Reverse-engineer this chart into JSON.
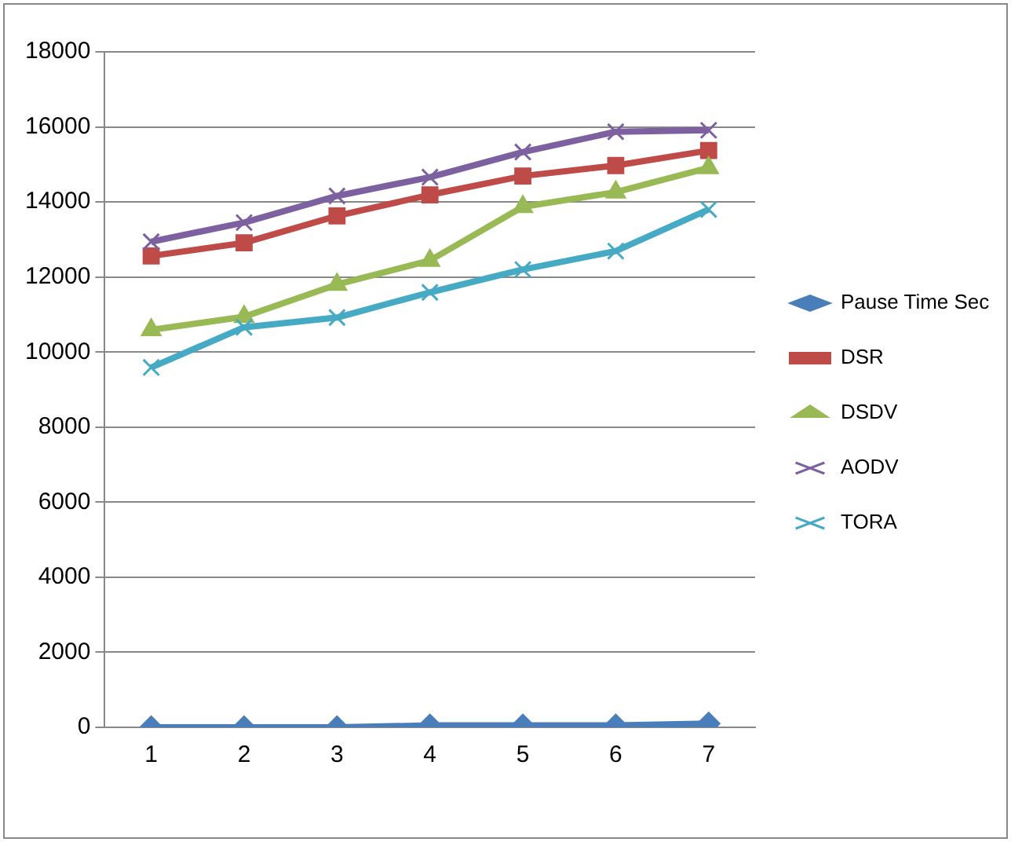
{
  "chart_data": {
    "type": "line",
    "categories": [
      "1",
      "2",
      "3",
      "4",
      "5",
      "6",
      "7"
    ],
    "series": [
      {
        "name": "Pause Time Sec",
        "color": "#4a7ebb",
        "marker": "diamond",
        "values": [
          0,
          0,
          0,
          50,
          50,
          50,
          100
        ]
      },
      {
        "name": "DSR",
        "color": "#be4b48",
        "marker": "square",
        "values": [
          12560,
          12910,
          13630,
          14190,
          14690,
          14970,
          15370
        ]
      },
      {
        "name": "DSDV",
        "color": "#98b954",
        "marker": "triangle",
        "values": [
          10590,
          10940,
          11800,
          12440,
          13870,
          14260,
          14910
        ]
      },
      {
        "name": "AODV",
        "color": "#7d60a0",
        "marker": "cross",
        "values": [
          12940,
          13450,
          14160,
          14660,
          15330,
          15870,
          15910
        ]
      },
      {
        "name": "TORA",
        "color": "#46aac5",
        "marker": "cross",
        "values": [
          9590,
          10660,
          10920,
          11590,
          12200,
          12690,
          13800
        ]
      }
    ],
    "ylim": [
      0,
      18000
    ],
    "yticks": [
      0,
      2000,
      4000,
      6000,
      8000,
      10000,
      12000,
      14000,
      16000,
      18000
    ],
    "grid": "y",
    "legend": "right",
    "line_style": "solid"
  }
}
